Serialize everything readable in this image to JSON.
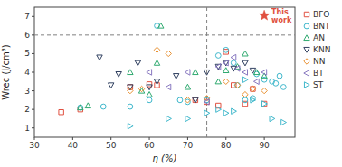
{
  "chart_data": {
    "type": "scatter",
    "xlabel": "η (%)",
    "ylabel": "Wrec (J/cm³)",
    "xlim": [
      30,
      98
    ],
    "ylim": [
      0.5,
      7.5
    ],
    "xticks": [
      30,
      40,
      50,
      60,
      70,
      80,
      90
    ],
    "yticks": [
      1,
      2,
      3,
      4,
      5,
      6,
      7
    ],
    "grid": false,
    "legend": "right",
    "series": [
      {
        "name": "BFO",
        "color": "#e05040",
        "marker": "square",
        "x": [
          37,
          42,
          55,
          60,
          62,
          72,
          75,
          78,
          80,
          82,
          85,
          87,
          90
        ],
        "values": [
          1.85,
          2.0,
          3.2,
          3.35,
          3.3,
          2.5,
          2.4,
          2.2,
          5.1,
          3.3,
          2.3,
          3.1,
          2.3
        ]
      },
      {
        "name": "BNT",
        "color": "#40b8cc",
        "marker": "circle",
        "x": [
          42,
          48,
          55,
          60,
          62,
          68,
          70,
          75,
          78,
          80,
          82,
          83,
          85,
          87,
          88,
          90,
          92,
          93,
          94,
          95
        ],
        "values": [
          2.1,
          2.15,
          2.15,
          2.5,
          6.5,
          2.5,
          2.4,
          2.5,
          4.9,
          5.2,
          4.5,
          3.3,
          2.5,
          2.6,
          3.9,
          3.6,
          3.5,
          3.4,
          3.8,
          3.2
        ]
      },
      {
        "name": "AN",
        "color": "#30aa70",
        "marker": "triangle-up",
        "x": [
          42,
          44,
          55,
          58,
          60,
          62,
          63,
          70,
          72,
          78,
          80,
          83,
          85,
          88,
          90
        ],
        "values": [
          2.1,
          2.2,
          4.0,
          3.0,
          2.8,
          4.5,
          6.5,
          3.2,
          4.0,
          3.5,
          4.1,
          4.3,
          5.0,
          4.0,
          3.8
        ]
      },
      {
        "name": "KNN",
        "color": "#304060",
        "marker": "triangle-down",
        "x": [
          47,
          50,
          52,
          55,
          57,
          60,
          62,
          67,
          72,
          75,
          78,
          80,
          82,
          85,
          87
        ],
        "values": [
          4.8,
          3.3,
          3.9,
          3.2,
          4.5,
          3.2,
          3.5,
          3.8,
          2.5,
          4.0,
          4.3,
          4.5,
          4.2,
          4.5,
          4.1
        ]
      },
      {
        "name": "NN",
        "color": "#e89030",
        "marker": "diamond",
        "x": [
          55,
          58,
          62,
          65,
          70,
          75,
          80,
          83,
          85,
          87,
          90
        ],
        "values": [
          3.0,
          3.1,
          5.2,
          5.0,
          2.5,
          2.6,
          3.5,
          3.3,
          2.8,
          3.1,
          3.0
        ]
      },
      {
        "name": "BT",
        "color": "#8878c0",
        "marker": "triangle-left",
        "x": [
          60,
          65,
          70,
          75,
          78,
          80,
          82,
          83,
          85,
          88,
          90
        ],
        "values": [
          4.0,
          3.2,
          4.0,
          2.4,
          4.3,
          4.5,
          4.8,
          4.2,
          4.0,
          3.5,
          4.0
        ]
      },
      {
        "name": "ST",
        "color": "#40b8cc",
        "marker": "triangle-right",
        "x": [
          55,
          65,
          70,
          75,
          78,
          80,
          82,
          85,
          87,
          90,
          92,
          95
        ],
        "values": [
          1.1,
          1.5,
          1.5,
          1.8,
          2.0,
          1.8,
          1.9,
          3.6,
          2.5,
          2.3,
          1.5,
          1.3
        ]
      }
    ],
    "reference_lines": [
      {
        "axis": "x",
        "value": 75
      },
      {
        "axis": "y",
        "value": 6.0
      }
    ],
    "annotations": [
      {
        "text": "This\nwork",
        "x": 90,
        "y": 7.05,
        "color": "#e05040",
        "marker": "star"
      }
    ]
  }
}
